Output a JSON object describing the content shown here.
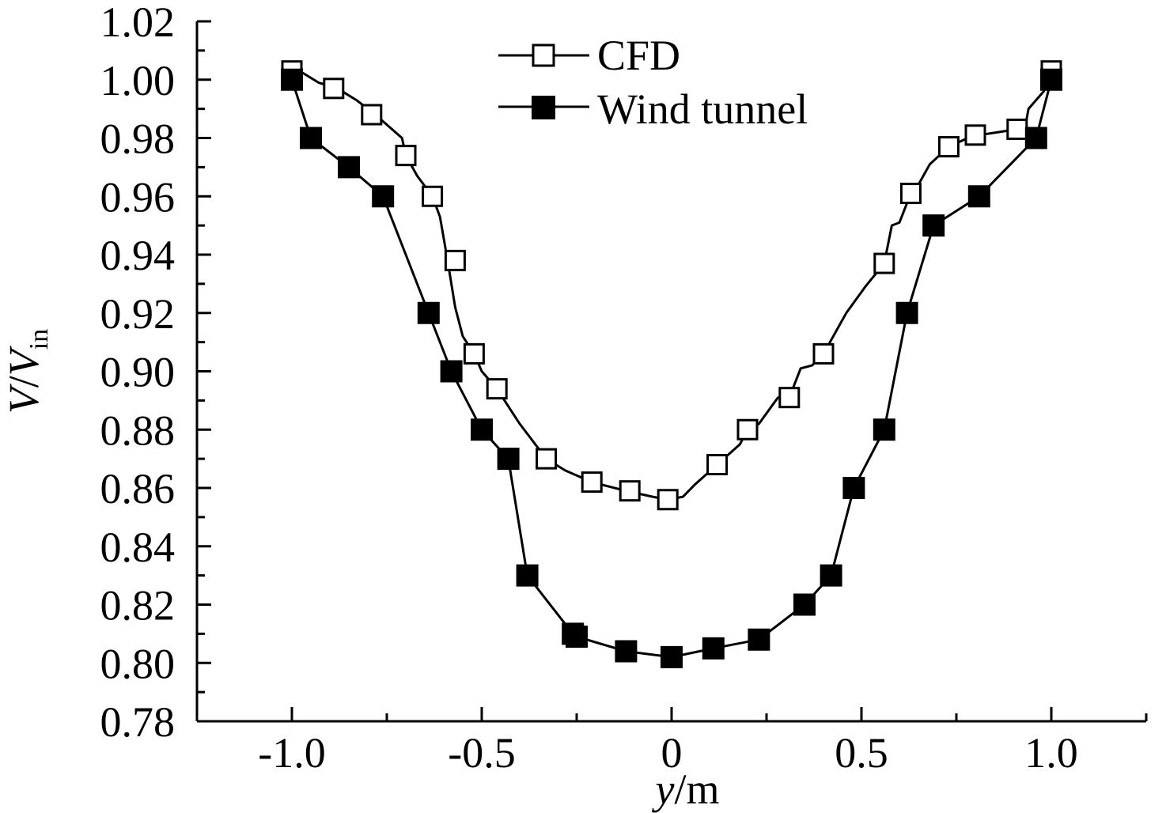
{
  "chart_data": {
    "type": "line",
    "xlabel_italic": "y",
    "xlabel_unit": "/m",
    "ylabel_italic_1": "V",
    "ylabel_slash": "/",
    "ylabel_italic_2": "V",
    "ylabel_sub": "in",
    "xlim": [
      -1.25,
      1.25
    ],
    "ylim": [
      0.78,
      1.02
    ],
    "x_ticks": [
      -1.0,
      -0.5,
      0,
      0.5,
      1.0
    ],
    "x_tick_labels": [
      "-1.0",
      "-0.5",
      "0",
      "0.5",
      "1.0"
    ],
    "y_ticks": [
      0.78,
      0.8,
      0.82,
      0.84,
      0.86,
      0.88,
      0.9,
      0.92,
      0.94,
      0.96,
      0.98,
      1.0,
      1.02
    ],
    "y_tick_labels": [
      "0.78",
      "0.80",
      "0.82",
      "0.84",
      "0.86",
      "0.88",
      "0.90",
      "0.92",
      "0.94",
      "0.96",
      "0.98",
      "1.00",
      "1.02"
    ],
    "legend_position": "top-center",
    "series": [
      {
        "name": "CFD",
        "marker": "open-square",
        "line_points": [
          [
            -1.0,
            1.003
          ],
          [
            -0.98,
            1.003
          ],
          [
            -0.93,
            0.999
          ],
          [
            -0.88,
            0.997
          ],
          [
            -0.83,
            0.993
          ],
          [
            -0.78,
            0.988
          ],
          [
            -0.71,
            0.98
          ],
          [
            -0.7,
            0.974
          ],
          [
            -0.67,
            0.967
          ],
          [
            -0.63,
            0.96
          ],
          [
            -0.61,
            0.953
          ],
          [
            -0.59,
            0.938
          ],
          [
            -0.57,
            0.922
          ],
          [
            -0.55,
            0.912
          ],
          [
            -0.52,
            0.906
          ],
          [
            -0.5,
            0.9
          ],
          [
            -0.46,
            0.894
          ],
          [
            -0.4,
            0.882
          ],
          [
            -0.33,
            0.87
          ],
          [
            -0.28,
            0.866
          ],
          [
            -0.21,
            0.862
          ],
          [
            -0.12,
            0.859
          ],
          [
            -0.05,
            0.857
          ],
          [
            -0.01,
            0.856
          ],
          [
            0.03,
            0.857
          ],
          [
            0.06,
            0.861
          ],
          [
            0.12,
            0.868
          ],
          [
            0.18,
            0.875
          ],
          [
            0.2,
            0.88
          ],
          [
            0.23,
            0.882
          ],
          [
            0.28,
            0.891
          ],
          [
            0.31,
            0.891
          ],
          [
            0.34,
            0.901
          ],
          [
            0.37,
            0.902
          ],
          [
            0.4,
            0.906
          ],
          [
            0.46,
            0.92
          ],
          [
            0.51,
            0.929
          ],
          [
            0.56,
            0.937
          ],
          [
            0.58,
            0.95
          ],
          [
            0.6,
            0.951
          ],
          [
            0.63,
            0.961
          ],
          [
            0.65,
            0.964
          ],
          [
            0.68,
            0.971
          ],
          [
            0.73,
            0.977
          ],
          [
            0.78,
            0.98
          ],
          [
            0.81,
            0.981
          ],
          [
            0.86,
            0.982
          ],
          [
            0.91,
            0.983
          ],
          [
            0.93,
            0.983
          ],
          [
            0.94,
            0.99
          ],
          [
            0.98,
            0.996
          ],
          [
            1.0,
            1.003
          ]
        ],
        "markers": [
          [
            -1.0,
            1.003
          ],
          [
            -0.89,
            0.997
          ],
          [
            -0.79,
            0.988
          ],
          [
            -0.7,
            0.974
          ],
          [
            -0.63,
            0.96
          ],
          [
            -0.57,
            0.938
          ],
          [
            -0.52,
            0.906
          ],
          [
            -0.46,
            0.894
          ],
          [
            -0.33,
            0.87
          ],
          [
            -0.21,
            0.862
          ],
          [
            -0.11,
            0.859
          ],
          [
            -0.01,
            0.856
          ],
          [
            0.12,
            0.868
          ],
          [
            0.2,
            0.88
          ],
          [
            0.31,
            0.891
          ],
          [
            0.4,
            0.906
          ],
          [
            0.56,
            0.937
          ],
          [
            0.63,
            0.961
          ],
          [
            0.73,
            0.977
          ],
          [
            0.8,
            0.981
          ],
          [
            0.91,
            0.983
          ],
          [
            1.0,
            1.003
          ]
        ]
      },
      {
        "name": "Wind tunnel",
        "marker": "filled-square",
        "line_points": [
          [
            -1.0,
            1.0
          ],
          [
            -0.95,
            0.98
          ],
          [
            -0.85,
            0.97
          ],
          [
            -0.76,
            0.96
          ],
          [
            -0.64,
            0.92
          ],
          [
            -0.58,
            0.9
          ],
          [
            -0.5,
            0.88
          ],
          [
            -0.43,
            0.87
          ],
          [
            -0.38,
            0.83
          ],
          [
            -0.26,
            0.81
          ],
          [
            -0.25,
            0.809
          ],
          [
            -0.12,
            0.804
          ],
          [
            0.0,
            0.802
          ],
          [
            0.11,
            0.805
          ],
          [
            0.23,
            0.808
          ],
          [
            0.35,
            0.82
          ],
          [
            0.42,
            0.83
          ],
          [
            0.48,
            0.86
          ],
          [
            0.56,
            0.88
          ],
          [
            0.62,
            0.92
          ],
          [
            0.69,
            0.95
          ],
          [
            0.81,
            0.96
          ],
          [
            0.96,
            0.98
          ],
          [
            1.0,
            1.0
          ]
        ],
        "markers": [
          [
            -1.0,
            1.0
          ],
          [
            -0.95,
            0.98
          ],
          [
            -0.85,
            0.97
          ],
          [
            -0.76,
            0.96
          ],
          [
            -0.64,
            0.92
          ],
          [
            -0.58,
            0.9
          ],
          [
            -0.5,
            0.88
          ],
          [
            -0.43,
            0.87
          ],
          [
            -0.38,
            0.83
          ],
          [
            -0.26,
            0.81
          ],
          [
            -0.25,
            0.809
          ],
          [
            -0.12,
            0.804
          ],
          [
            0.0,
            0.802
          ],
          [
            0.11,
            0.805
          ],
          [
            0.23,
            0.808
          ],
          [
            0.35,
            0.82
          ],
          [
            0.42,
            0.83
          ],
          [
            0.48,
            0.86
          ],
          [
            0.56,
            0.88
          ],
          [
            0.62,
            0.92
          ],
          [
            0.69,
            0.95
          ],
          [
            0.81,
            0.96
          ],
          [
            0.96,
            0.98
          ],
          [
            1.0,
            1.0
          ]
        ]
      }
    ]
  }
}
